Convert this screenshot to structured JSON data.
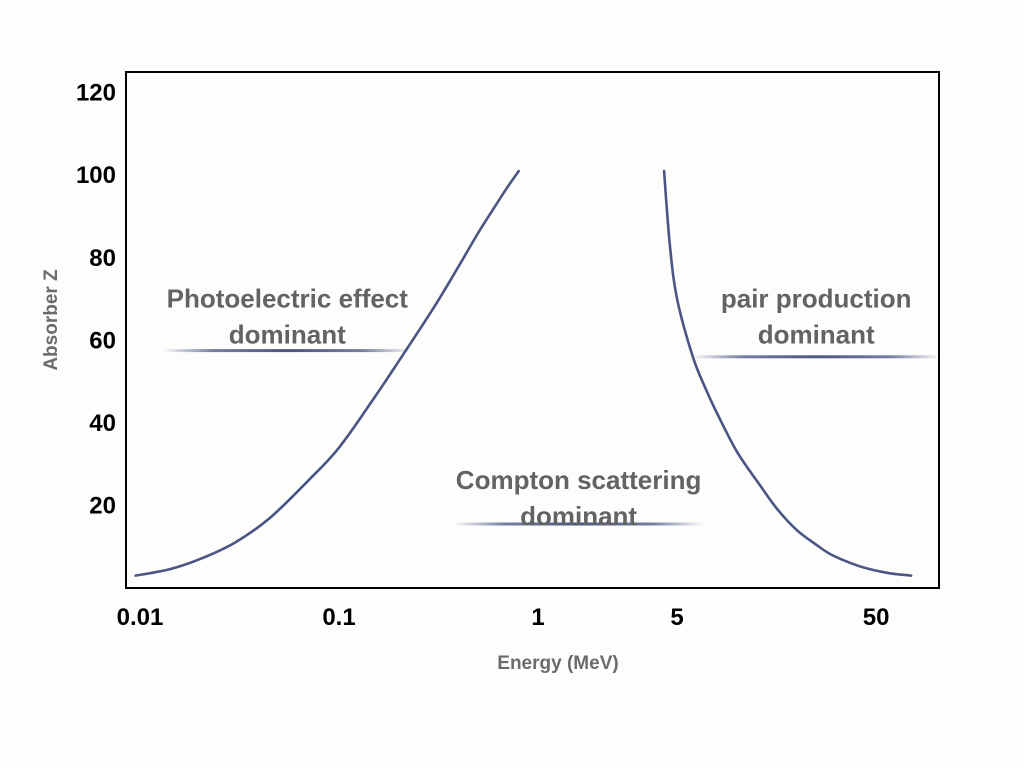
{
  "chart_data": {
    "type": "line",
    "title": "",
    "xlabel": "Energy (MeV)",
    "ylabel": "Absorber Z",
    "x_scale": "log",
    "x_ticks": [
      {
        "value": 0.01,
        "label": "0.01"
      },
      {
        "value": 0.1,
        "label": "0.1"
      },
      {
        "value": 1,
        "label": "1"
      },
      {
        "value": 5,
        "label": "5"
      },
      {
        "value": 50,
        "label": "50"
      }
    ],
    "y_ticks": [
      {
        "value": 20,
        "label": "20"
      },
      {
        "value": 40,
        "label": "40"
      },
      {
        "value": 60,
        "label": "60"
      },
      {
        "value": 80,
        "label": "80"
      },
      {
        "value": 100,
        "label": "100"
      },
      {
        "value": 120,
        "label": "120"
      }
    ],
    "xlim": [
      0.01,
      100
    ],
    "ylim": [
      0,
      125
    ],
    "grid": false,
    "series": [
      {
        "color": "#4a5585",
        "x": [
          0.0095,
          0.014,
          0.02,
          0.03,
          0.045,
          0.07,
          0.1,
          0.15,
          0.2,
          0.3,
          0.4,
          0.5,
          0.6,
          0.7,
          0.8
        ],
        "y": [
          3,
          4.5,
          7,
          11,
          17,
          26,
          34,
          46,
          55,
          68,
          78,
          86,
          92,
          97,
          101
        ]
      },
      {
        "color": "#4a5585",
        "x": [
          4.3,
          4.6,
          5,
          6,
          7,
          8,
          10,
          13,
          16,
          20,
          25,
          30,
          40,
          50,
          60,
          75
        ],
        "y": [
          101,
          83,
          70,
          56,
          48,
          42,
          33,
          25,
          19,
          14,
          10.5,
          8,
          5.5,
          4.2,
          3.5,
          3
        ]
      }
    ],
    "annotations": [
      {
        "lines": [
          "Photoelectric effect",
          "dominant"
        ],
        "x": 0.055,
        "y": 68,
        "underline_y": 57.5
      },
      {
        "lines": [
          "Compton scattering",
          "dominant"
        ],
        "x": 1.6,
        "y": 24,
        "underline_y": 15.5
      },
      {
        "lines": [
          "pair production",
          "dominant"
        ],
        "x": 25,
        "y": 68,
        "underline_y": 56
      }
    ]
  }
}
